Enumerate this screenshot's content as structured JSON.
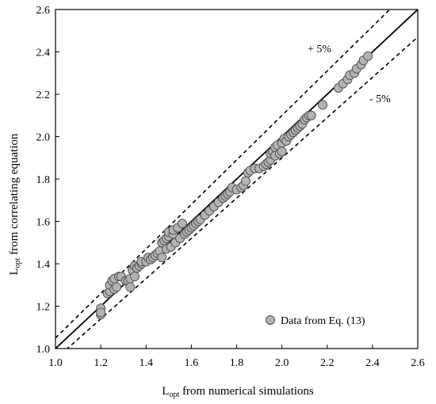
{
  "chart_data": {
    "type": "scatter",
    "xlabel_main": "L",
    "xlabel_sub": "opt",
    "xlabel_rest": " from numerical simulations",
    "ylabel_main": "L",
    "ylabel_sub": "opt",
    "ylabel_rest": " from correlating equation",
    "xlim": [
      1.0,
      2.6
    ],
    "ylim": [
      1.0,
      2.6
    ],
    "x_ticks": [
      "1.0",
      "1.2",
      "1.4",
      "1.6",
      "1.8",
      "2.0",
      "2.2",
      "2.4",
      "2.6"
    ],
    "y_ticks": [
      "1.0",
      "1.2",
      "1.4",
      "1.6",
      "1.8",
      "2.0",
      "2.2",
      "2.4",
      "2.6"
    ],
    "grid": false,
    "legend_position": "bottom-right",
    "annotations": {
      "upper": "+ 5%",
      "lower": "- 5%"
    },
    "reference_lines": [
      {
        "label": "identity",
        "slope": 1.0,
        "style": "solid"
      },
      {
        "label": "+ 5%",
        "slope": 1.05,
        "style": "dashed"
      },
      {
        "label": "- 5%",
        "slope": 0.95,
        "style": "dashed"
      }
    ],
    "series": [
      {
        "name": "Data from Eq. (13)",
        "color": "#b3b3b3",
        "points": [
          [
            1.2,
            1.19
          ],
          [
            1.2,
            1.16
          ],
          [
            1.2,
            1.17
          ],
          [
            1.23,
            1.26
          ],
          [
            1.24,
            1.27
          ],
          [
            1.24,
            1.3
          ],
          [
            1.25,
            1.32
          ],
          [
            1.26,
            1.28
          ],
          [
            1.26,
            1.33
          ],
          [
            1.27,
            1.29
          ],
          [
            1.28,
            1.34
          ],
          [
            1.29,
            1.34
          ],
          [
            1.31,
            1.32
          ],
          [
            1.32,
            1.32
          ],
          [
            1.33,
            1.33
          ],
          [
            1.33,
            1.29
          ],
          [
            1.34,
            1.37
          ],
          [
            1.35,
            1.34
          ],
          [
            1.35,
            1.39
          ],
          [
            1.36,
            1.38
          ],
          [
            1.37,
            1.39
          ],
          [
            1.38,
            1.4
          ],
          [
            1.38,
            1.41
          ],
          [
            1.4,
            1.41
          ],
          [
            1.41,
            1.43
          ],
          [
            1.42,
            1.42
          ],
          [
            1.43,
            1.43
          ],
          [
            1.44,
            1.44
          ],
          [
            1.45,
            1.45
          ],
          [
            1.46,
            1.46
          ],
          [
            1.47,
            1.43
          ],
          [
            1.47,
            1.5
          ],
          [
            1.48,
            1.51
          ],
          [
            1.49,
            1.47
          ],
          [
            1.49,
            1.52
          ],
          [
            1.5,
            1.53
          ],
          [
            1.5,
            1.55
          ],
          [
            1.51,
            1.48
          ],
          [
            1.52,
            1.54
          ],
          [
            1.52,
            1.56
          ],
          [
            1.53,
            1.5
          ],
          [
            1.54,
            1.57
          ],
          [
            1.55,
            1.52
          ],
          [
            1.56,
            1.59
          ],
          [
            1.57,
            1.54
          ],
          [
            1.58,
            1.55
          ],
          [
            1.59,
            1.56
          ],
          [
            1.6,
            1.57
          ],
          [
            1.61,
            1.58
          ],
          [
            1.62,
            1.59
          ],
          [
            1.63,
            1.6
          ],
          [
            1.64,
            1.61
          ],
          [
            1.66,
            1.63
          ],
          [
            1.68,
            1.65
          ],
          [
            1.7,
            1.67
          ],
          [
            1.72,
            1.69
          ],
          [
            1.74,
            1.71
          ],
          [
            1.75,
            1.72
          ],
          [
            1.76,
            1.73
          ],
          [
            1.77,
            1.74
          ],
          [
            1.78,
            1.76
          ],
          [
            1.8,
            1.75
          ],
          [
            1.82,
            1.76
          ],
          [
            1.83,
            1.77
          ],
          [
            1.84,
            1.79
          ],
          [
            1.85,
            1.83
          ],
          [
            1.86,
            1.84
          ],
          [
            1.88,
            1.85
          ],
          [
            1.9,
            1.85
          ],
          [
            1.92,
            1.86
          ],
          [
            1.93,
            1.87
          ],
          [
            1.94,
            1.88
          ],
          [
            1.95,
            1.89
          ],
          [
            1.95,
            1.92
          ],
          [
            1.96,
            1.93
          ],
          [
            1.97,
            1.91
          ],
          [
            1.97,
            1.95
          ],
          [
            1.98,
            1.96
          ],
          [
            1.99,
            1.92
          ],
          [
            2.0,
            1.93
          ],
          [
            2.0,
            1.97
          ],
          [
            2.01,
            1.99
          ],
          [
            2.02,
            1.98
          ],
          [
            2.03,
            2.0
          ],
          [
            2.04,
            2.01
          ],
          [
            2.05,
            2.02
          ],
          [
            2.06,
            2.03
          ],
          [
            2.07,
            2.04
          ],
          [
            2.08,
            2.05
          ],
          [
            2.09,
            2.06
          ],
          [
            2.1,
            2.08
          ],
          [
            2.11,
            2.09
          ],
          [
            2.12,
            2.1
          ],
          [
            2.13,
            2.1
          ],
          [
            2.18,
            2.15
          ],
          [
            2.25,
            2.23
          ],
          [
            2.27,
            2.25
          ],
          [
            2.29,
            2.27
          ],
          [
            2.3,
            2.29
          ],
          [
            2.32,
            2.3
          ],
          [
            2.33,
            2.32
          ],
          [
            2.35,
            2.34
          ],
          [
            2.36,
            2.36
          ],
          [
            2.38,
            2.38
          ]
        ]
      }
    ]
  }
}
